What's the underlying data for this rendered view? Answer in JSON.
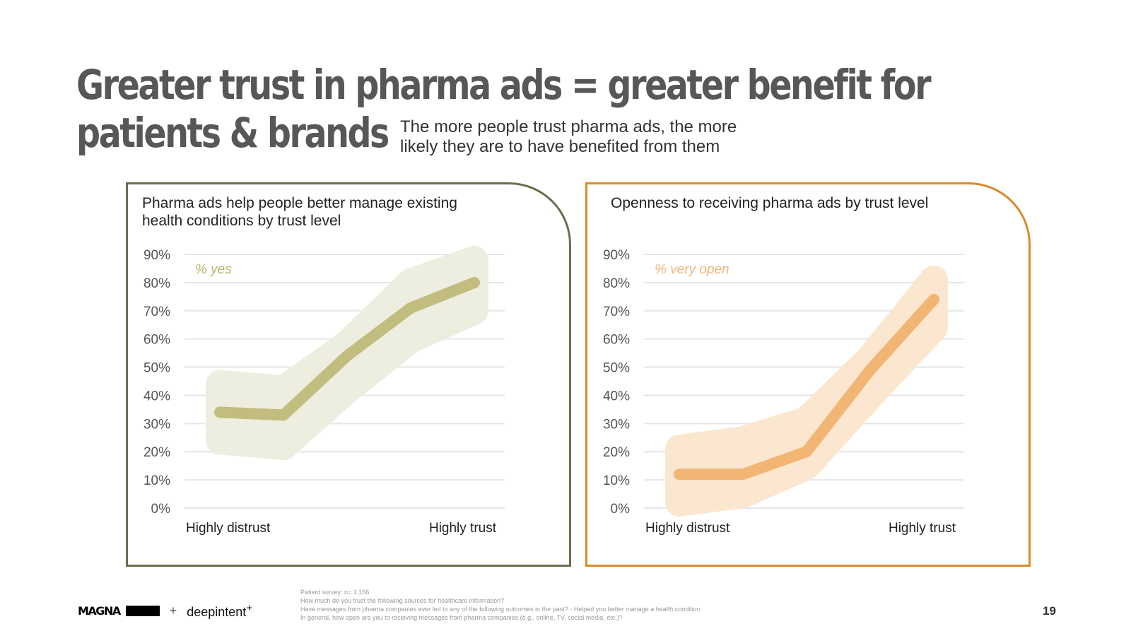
{
  "header": {
    "title_line1": "Greater trust in pharma ads = greater benefit for",
    "title_line2": "patients & brands",
    "subtitle": "The more people trust pharma ads, the more likely they are to have benefited from them"
  },
  "colors": {
    "left_border": "#6d6d4f",
    "left_line": "#c2bd7f",
    "left_band": "#eeeee0",
    "left_label": "#bdb570",
    "right_border": "#d88b2b",
    "right_line": "#f3b574",
    "right_band": "#fbe6cf",
    "right_label": "#f0b678",
    "gridline": "#e6e6e6"
  },
  "chart_data": [
    {
      "type": "line",
      "title": "Pharma ads help people better manage existing health conditions by trust level",
      "series_label": "% yes",
      "x": [
        "Highly distrust",
        "",
        "",
        "",
        "Highly trust"
      ],
      "series": [
        {
          "values": [
            34,
            33,
            54,
            71,
            80
          ]
        }
      ],
      "band": {
        "upper": [
          44,
          42,
          58,
          80,
          88
        ],
        "lower": [
          24,
          22,
          42,
          60,
          70
        ]
      },
      "ylim": [
        0,
        90
      ],
      "yticks": [
        "0%",
        "10%",
        "20%",
        "30%",
        "40%",
        "50%",
        "60%",
        "70%",
        "80%",
        "90%"
      ],
      "grid": true
    },
    {
      "type": "line",
      "title": "Openness to receiving pharma ads by trust level",
      "series_label": "% very open",
      "x": [
        "Highly distrust",
        "",
        "",
        "",
        "Highly trust"
      ],
      "series": [
        {
          "values": [
            12,
            12,
            20,
            49,
            74
          ]
        }
      ],
      "band": {
        "upper": [
          21,
          24,
          31,
          53,
          81
        ],
        "lower": [
          2,
          5,
          15,
          40,
          64
        ]
      },
      "ylim": [
        0,
        90
      ],
      "yticks": [
        "0%",
        "10%",
        "20%",
        "30%",
        "40%",
        "50%",
        "60%",
        "70%",
        "80%",
        "90%"
      ],
      "grid": true
    }
  ],
  "footer": {
    "logo_magna": "MAGNA",
    "logo_block_text": "",
    "logo_plus": "+",
    "logo_deepintent": "deepintent",
    "logo_deepintent_mark": "+",
    "notes": [
      "Patient survey: n= 1,166",
      "How much do you trust the following sources for healthcare information?",
      "Have messages from pharma companies ever led to any of the following outcomes in the past? - Helped you better manage a health condition",
      "In general, how open are you to receiving messages from pharma companies (e.g., online, TV, social media, etc.)?"
    ],
    "page_number": "19"
  }
}
